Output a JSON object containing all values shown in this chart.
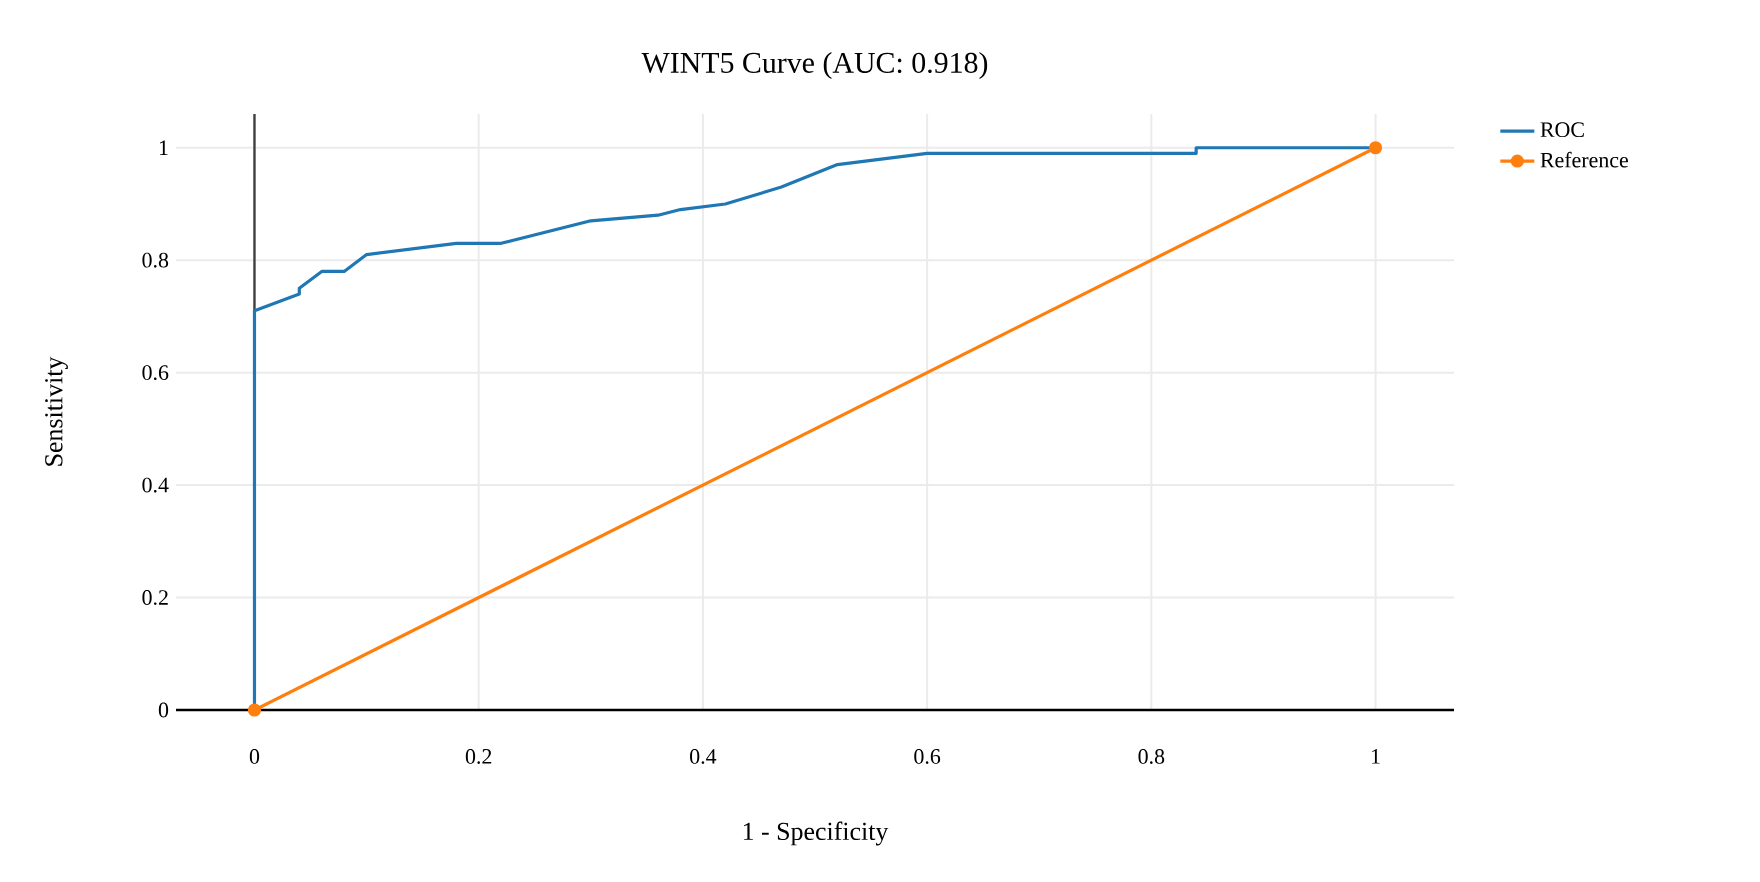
{
  "chart_data": {
    "type": "line",
    "title": "WINT5 Curve (AUC: 0.918)",
    "xlabel": "1 - Specificity",
    "ylabel": "Sensitivity",
    "xlim": [
      -0.07,
      1.07
    ],
    "ylim": [
      0,
      1.06
    ],
    "xticks": [
      0,
      0.2,
      0.4,
      0.6,
      0.8,
      1
    ],
    "yticks": [
      0,
      0.2,
      0.4,
      0.6,
      0.8,
      1
    ],
    "grid": true,
    "legend": "top right",
    "series": [
      {
        "name": "ROC",
        "color": "#1f77b4",
        "marker": "none",
        "x": [
          0,
          0,
          0.04,
          0.04,
          0.06,
          0.08,
          0.1,
          0.18,
          0.22,
          0.3,
          0.36,
          0.38,
          0.42,
          0.47,
          0.52,
          0.6,
          0.84,
          0.84,
          1.0
        ],
        "values": [
          0,
          0.71,
          0.74,
          0.75,
          0.78,
          0.78,
          0.81,
          0.83,
          0.83,
          0.87,
          0.88,
          0.89,
          0.9,
          0.93,
          0.97,
          0.99,
          0.99,
          1.0,
          1.0
        ]
      },
      {
        "name": "Reference",
        "color": "#ff7f0e",
        "marker": "circle",
        "x": [
          0,
          1
        ],
        "values": [
          0,
          1
        ]
      }
    ]
  }
}
